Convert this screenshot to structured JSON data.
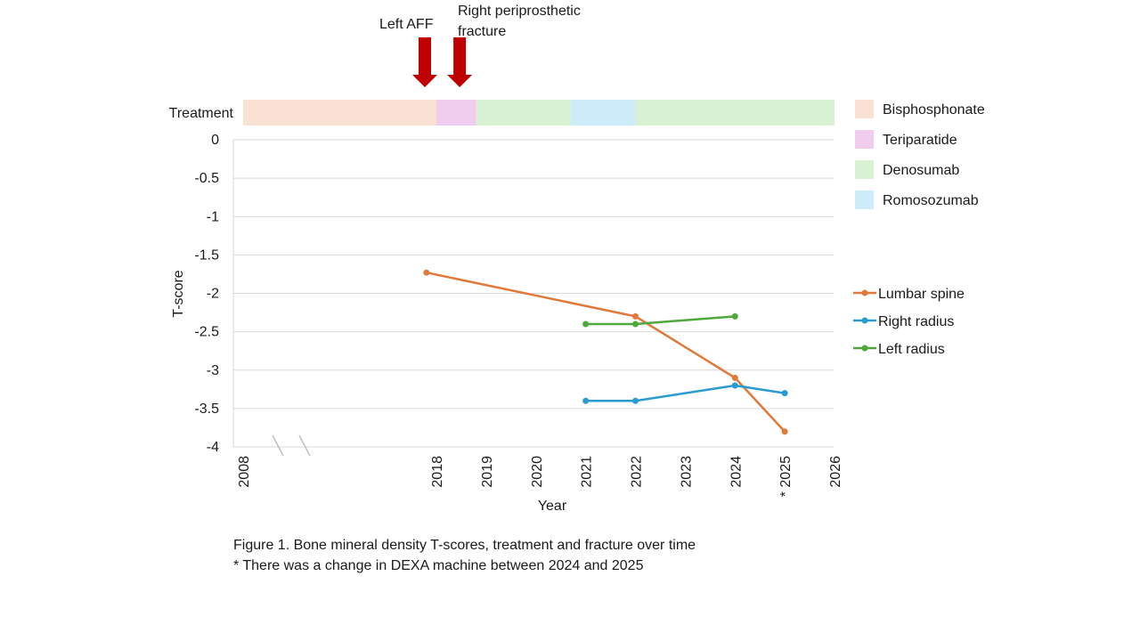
{
  "chart_data": {
    "type": "line",
    "xlabel": "Year",
    "ylabel": "T-score",
    "ylim": [
      -4,
      0
    ],
    "y_ticks": [
      0,
      -0.5,
      -1,
      -1.5,
      -2,
      -2.5,
      -3,
      -3.5,
      -4
    ],
    "y_tick_labels": [
      "0",
      "-0.5",
      "-1",
      "-1.5",
      "-2",
      "-2.5",
      "-3",
      "-3.5",
      "-4"
    ],
    "x_ticks": [
      2008,
      2018,
      2019,
      2020,
      2021,
      2022,
      2023,
      2024,
      2025,
      2026
    ],
    "x_tick_labels": [
      "2008",
      "2018",
      "2019",
      "2020",
      "2021",
      "2022",
      "2023",
      "2024",
      "* 2025",
      "2026"
    ],
    "axis_break": "between 2008 and 2018",
    "grid": true,
    "legend_position": "right",
    "series": [
      {
        "name": "Lumbar spine",
        "color": "#E07A3A",
        "x": [
          2017.8,
          2022,
          2024,
          2025
        ],
        "y": [
          -1.73,
          -2.3,
          -3.1,
          -3.8
        ]
      },
      {
        "name": "Right radius",
        "color": "#2A9BD0",
        "x": [
          2021,
          2022,
          2024,
          2025
        ],
        "y": [
          -3.4,
          -3.4,
          -3.2,
          -3.3
        ]
      },
      {
        "name": "Left radius",
        "color": "#4EA83C",
        "x": [
          2021,
          2022,
          2024
        ],
        "y": [
          -2.4,
          -2.4,
          -2.3
        ]
      }
    ],
    "treatment_label": "Treatment",
    "treatments": [
      {
        "name": "Bisphosphonate",
        "color": "#F9E1D4"
      },
      {
        "name": "Teriparatide",
        "color": "#F0CDEE"
      },
      {
        "name": "Denosumab",
        "color": "#D9F1D3"
      },
      {
        "name": "Romosozumab",
        "color": "#CDEBF8"
      }
    ],
    "treatment_periods": [
      {
        "treatment": "Bisphosphonate",
        "start": 2008,
        "end": 2018
      },
      {
        "treatment": "Teriparatide",
        "start": 2018,
        "end": 2018.8
      },
      {
        "treatment": "Denosumab",
        "start": 2018.8,
        "end": 2020.7
      },
      {
        "treatment": "Romosozumab",
        "start": 2020.7,
        "end": 2022
      },
      {
        "treatment": "Denosumab",
        "start": 2022,
        "end": 2026
      }
    ],
    "fractures": [
      {
        "label": "Left AFF",
        "year": 2018,
        "color": "#C00000"
      },
      {
        "label": "Right periprosthetic fracture",
        "year": 2018.7,
        "color": "#C00000"
      }
    ]
  },
  "caption": {
    "line1": "Figure 1. Bone mineral density T-scores, treatment and fracture over time",
    "line2": "* There was a change in DEXA machine between 2024 and 2025"
  }
}
